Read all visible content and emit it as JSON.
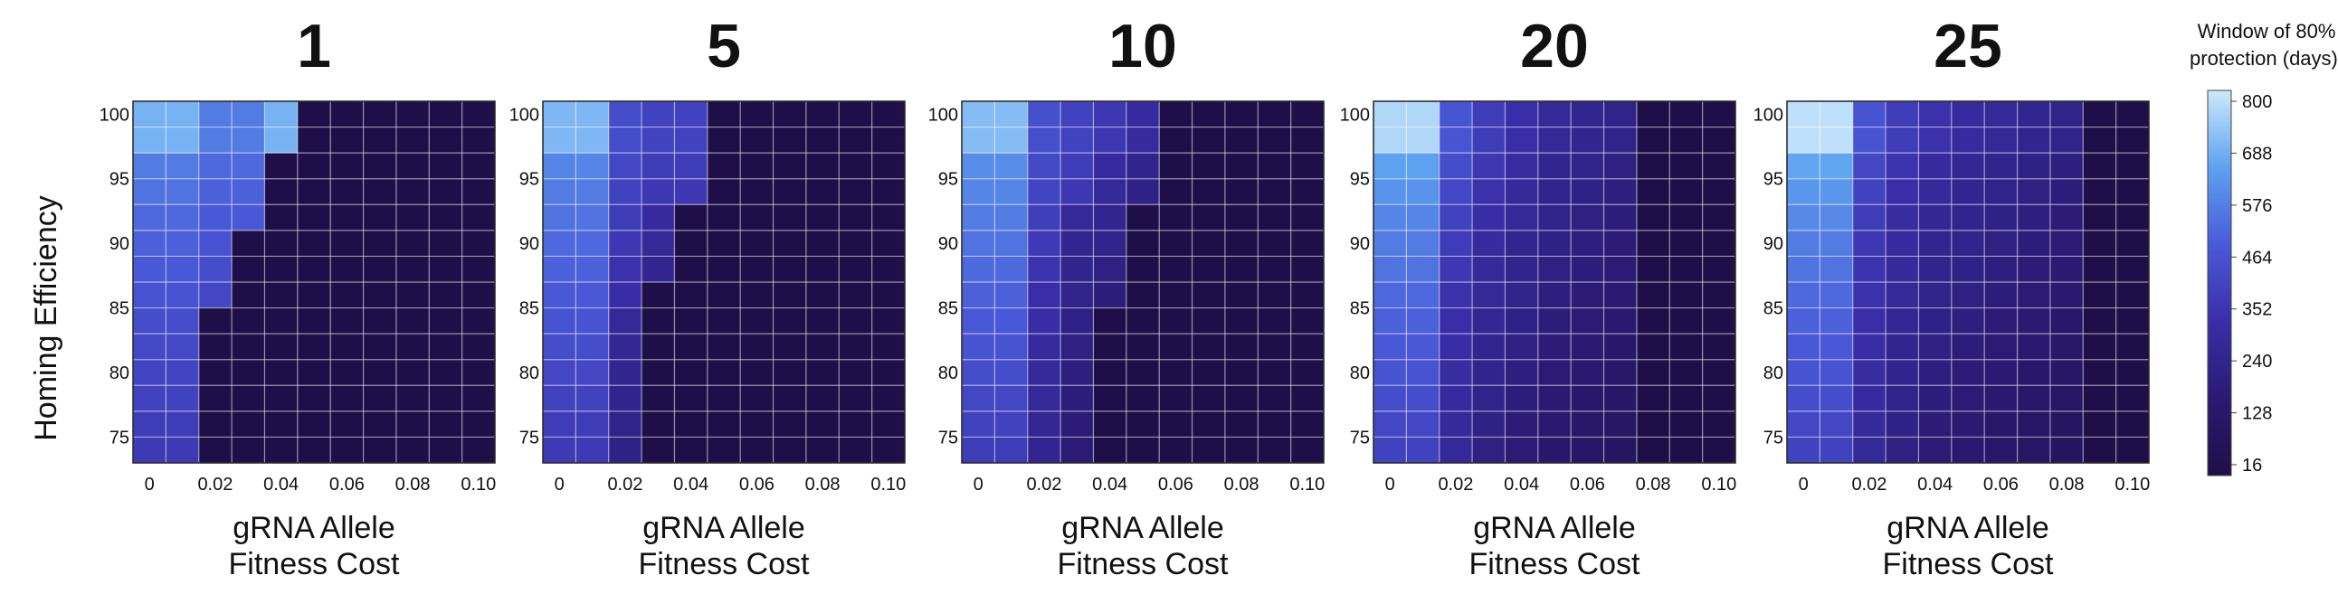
{
  "chart_data": {
    "type": "heatmap",
    "ylabel": "Homing Efficiency",
    "xlabel_lines": [
      "gRNA Allele",
      "Fitness Cost"
    ],
    "x_ticks": [
      "0",
      "0.02",
      "0.04",
      "0.06",
      "0.08",
      "0.10"
    ],
    "y_ticks": [
      "100",
      "95",
      "90",
      "85",
      "80",
      "75"
    ],
    "x_values": [
      0,
      0.01,
      0.02,
      0.03,
      0.04,
      0.05,
      0.06,
      0.07,
      0.08,
      0.09,
      0.1
    ],
    "y_values": [
      100,
      98,
      96,
      94,
      92,
      90,
      88,
      86,
      84,
      82,
      80,
      78,
      76,
      74
    ],
    "colorbar": {
      "title_lines": [
        "Window of 80%",
        "protection (days):"
      ],
      "ticks": [
        "800",
        "688",
        "576",
        "464",
        "352",
        "240",
        "128",
        "16"
      ],
      "min": 16,
      "max": 800,
      "colors": [
        "#1e0f48",
        "#2a1a72",
        "#3a2ea8",
        "#4a5ad8",
        "#5da2f0",
        "#cde9fb"
      ]
    },
    "panels": [
      {
        "title": "1",
        "rows": [
          [
            680,
            680,
            560,
            560,
            680,
            16,
            16,
            16,
            16,
            16,
            16
          ],
          [
            680,
            680,
            560,
            560,
            680,
            16,
            16,
            16,
            16,
            16,
            16
          ],
          [
            560,
            560,
            520,
            520,
            16,
            16,
            16,
            16,
            16,
            16,
            16
          ],
          [
            540,
            540,
            500,
            500,
            16,
            16,
            16,
            16,
            16,
            16,
            16
          ],
          [
            520,
            520,
            480,
            480,
            16,
            16,
            16,
            16,
            16,
            16,
            16
          ],
          [
            500,
            500,
            460,
            16,
            16,
            16,
            16,
            16,
            16,
            16,
            16
          ],
          [
            480,
            480,
            440,
            16,
            16,
            16,
            16,
            16,
            16,
            16,
            16
          ],
          [
            460,
            460,
            420,
            16,
            16,
            16,
            16,
            16,
            16,
            16,
            16
          ],
          [
            440,
            440,
            16,
            16,
            16,
            16,
            16,
            16,
            16,
            16,
            16
          ],
          [
            430,
            430,
            16,
            16,
            16,
            16,
            16,
            16,
            16,
            16,
            16
          ],
          [
            410,
            410,
            16,
            16,
            16,
            16,
            16,
            16,
            16,
            16,
            16
          ],
          [
            400,
            400,
            16,
            16,
            16,
            16,
            16,
            16,
            16,
            16,
            16
          ],
          [
            380,
            380,
            16,
            16,
            16,
            16,
            16,
            16,
            16,
            16,
            16
          ],
          [
            370,
            370,
            16,
            16,
            16,
            16,
            16,
            16,
            16,
            16,
            16
          ]
        ]
      },
      {
        "title": "5",
        "rows": [
          [
            690,
            690,
            440,
            400,
            400,
            16,
            16,
            16,
            16,
            16,
            16
          ],
          [
            690,
            690,
            440,
            400,
            400,
            16,
            16,
            16,
            16,
            16,
            16
          ],
          [
            580,
            580,
            420,
            380,
            380,
            16,
            16,
            16,
            16,
            16,
            16
          ],
          [
            560,
            560,
            400,
            360,
            360,
            16,
            16,
            16,
            16,
            16,
            16
          ],
          [
            540,
            540,
            380,
            300,
            16,
            16,
            16,
            16,
            16,
            16,
            16
          ],
          [
            520,
            520,
            360,
            280,
            16,
            16,
            16,
            16,
            16,
            16,
            16
          ],
          [
            500,
            500,
            340,
            260,
            16,
            16,
            16,
            16,
            16,
            16,
            16
          ],
          [
            480,
            480,
            320,
            16,
            16,
            16,
            16,
            16,
            16,
            16,
            16
          ],
          [
            460,
            460,
            280,
            16,
            16,
            16,
            16,
            16,
            16,
            16,
            16
          ],
          [
            440,
            440,
            270,
            16,
            16,
            16,
            16,
            16,
            16,
            16,
            16
          ],
          [
            420,
            420,
            260,
            16,
            16,
            16,
            16,
            16,
            16,
            16,
            16
          ],
          [
            400,
            400,
            250,
            16,
            16,
            16,
            16,
            16,
            16,
            16,
            16
          ],
          [
            380,
            380,
            240,
            16,
            16,
            16,
            16,
            16,
            16,
            16,
            16
          ],
          [
            370,
            370,
            230,
            16,
            16,
            16,
            16,
            16,
            16,
            16,
            16
          ]
        ]
      },
      {
        "title": "10",
        "rows": [
          [
            700,
            700,
            450,
            400,
            360,
            300,
            16,
            16,
            16,
            16,
            16
          ],
          [
            700,
            700,
            450,
            400,
            360,
            300,
            16,
            16,
            16,
            16,
            16
          ],
          [
            600,
            600,
            430,
            380,
            300,
            250,
            16,
            16,
            16,
            16,
            16
          ],
          [
            580,
            580,
            410,
            360,
            280,
            230,
            16,
            16,
            16,
            16,
            16
          ],
          [
            560,
            560,
            390,
            280,
            260,
            16,
            16,
            16,
            16,
            16,
            16
          ],
          [
            540,
            540,
            370,
            260,
            240,
            16,
            16,
            16,
            16,
            16,
            16
          ],
          [
            520,
            520,
            350,
            250,
            220,
            16,
            16,
            16,
            16,
            16,
            16
          ],
          [
            500,
            500,
            330,
            240,
            200,
            16,
            16,
            16,
            16,
            16,
            16
          ],
          [
            480,
            480,
            320,
            230,
            16,
            16,
            16,
            16,
            16,
            16,
            16
          ],
          [
            460,
            460,
            300,
            220,
            16,
            16,
            16,
            16,
            16,
            16,
            16
          ],
          [
            440,
            440,
            290,
            210,
            16,
            16,
            16,
            16,
            16,
            16,
            16
          ],
          [
            420,
            420,
            280,
            200,
            16,
            16,
            16,
            16,
            16,
            16,
            16
          ],
          [
            400,
            400,
            270,
            190,
            16,
            16,
            16,
            16,
            16,
            16,
            16
          ],
          [
            380,
            380,
            260,
            180,
            16,
            16,
            16,
            16,
            16,
            16,
            16
          ]
        ]
      },
      {
        "title": "20",
        "rows": [
          [
            760,
            760,
            470,
            380,
            330,
            280,
            260,
            240,
            16,
            16,
            16
          ],
          [
            760,
            760,
            470,
            380,
            330,
            280,
            260,
            240,
            16,
            16,
            16
          ],
          [
            640,
            640,
            440,
            360,
            310,
            260,
            240,
            220,
            16,
            16,
            16
          ],
          [
            610,
            610,
            420,
            340,
            290,
            250,
            230,
            210,
            16,
            16,
            16
          ],
          [
            580,
            580,
            400,
            320,
            280,
            240,
            220,
            200,
            16,
            16,
            16
          ],
          [
            560,
            560,
            380,
            300,
            260,
            230,
            210,
            190,
            16,
            16,
            16
          ],
          [
            540,
            540,
            360,
            290,
            250,
            220,
            200,
            180,
            16,
            16,
            16
          ],
          [
            520,
            520,
            340,
            280,
            240,
            210,
            190,
            170,
            16,
            16,
            16
          ],
          [
            500,
            500,
            330,
            270,
            230,
            200,
            180,
            160,
            16,
            16,
            16
          ],
          [
            480,
            480,
            320,
            260,
            220,
            190,
            170,
            150,
            16,
            16,
            16
          ],
          [
            460,
            460,
            310,
            250,
            210,
            180,
            160,
            140,
            16,
            16,
            16
          ],
          [
            440,
            440,
            300,
            240,
            200,
            170,
            150,
            130,
            16,
            16,
            16
          ],
          [
            420,
            420,
            290,
            230,
            190,
            160,
            140,
            120,
            16,
            16,
            16
          ],
          [
            400,
            400,
            280,
            220,
            180,
            150,
            130,
            110,
            16,
            16,
            16
          ]
        ]
      },
      {
        "title": "25",
        "rows": [
          [
            780,
            780,
            460,
            380,
            340,
            300,
            280,
            260,
            240,
            16,
            16
          ],
          [
            780,
            780,
            460,
            380,
            340,
            300,
            280,
            260,
            240,
            16,
            16
          ],
          [
            650,
            650,
            420,
            350,
            300,
            270,
            250,
            230,
            210,
            16,
            16
          ],
          [
            620,
            620,
            400,
            330,
            290,
            260,
            240,
            220,
            200,
            16,
            16
          ],
          [
            590,
            590,
            380,
            310,
            270,
            250,
            230,
            210,
            190,
            16,
            16
          ],
          [
            560,
            560,
            360,
            300,
            260,
            240,
            220,
            200,
            180,
            16,
            16
          ],
          [
            540,
            540,
            350,
            290,
            250,
            230,
            210,
            190,
            170,
            16,
            16
          ],
          [
            520,
            520,
            340,
            280,
            240,
            220,
            200,
            180,
            160,
            16,
            16
          ],
          [
            500,
            500,
            330,
            270,
            230,
            210,
            190,
            170,
            150,
            16,
            16
          ],
          [
            480,
            480,
            320,
            260,
            220,
            200,
            180,
            160,
            140,
            16,
            16
          ],
          [
            460,
            460,
            310,
            250,
            210,
            190,
            170,
            150,
            130,
            16,
            16
          ],
          [
            440,
            440,
            300,
            240,
            200,
            180,
            160,
            140,
            120,
            16,
            16
          ],
          [
            420,
            420,
            290,
            230,
            190,
            170,
            150,
            130,
            110,
            16,
            16
          ],
          [
            400,
            400,
            280,
            220,
            180,
            160,
            140,
            120,
            100,
            16,
            16
          ]
        ]
      }
    ]
  }
}
